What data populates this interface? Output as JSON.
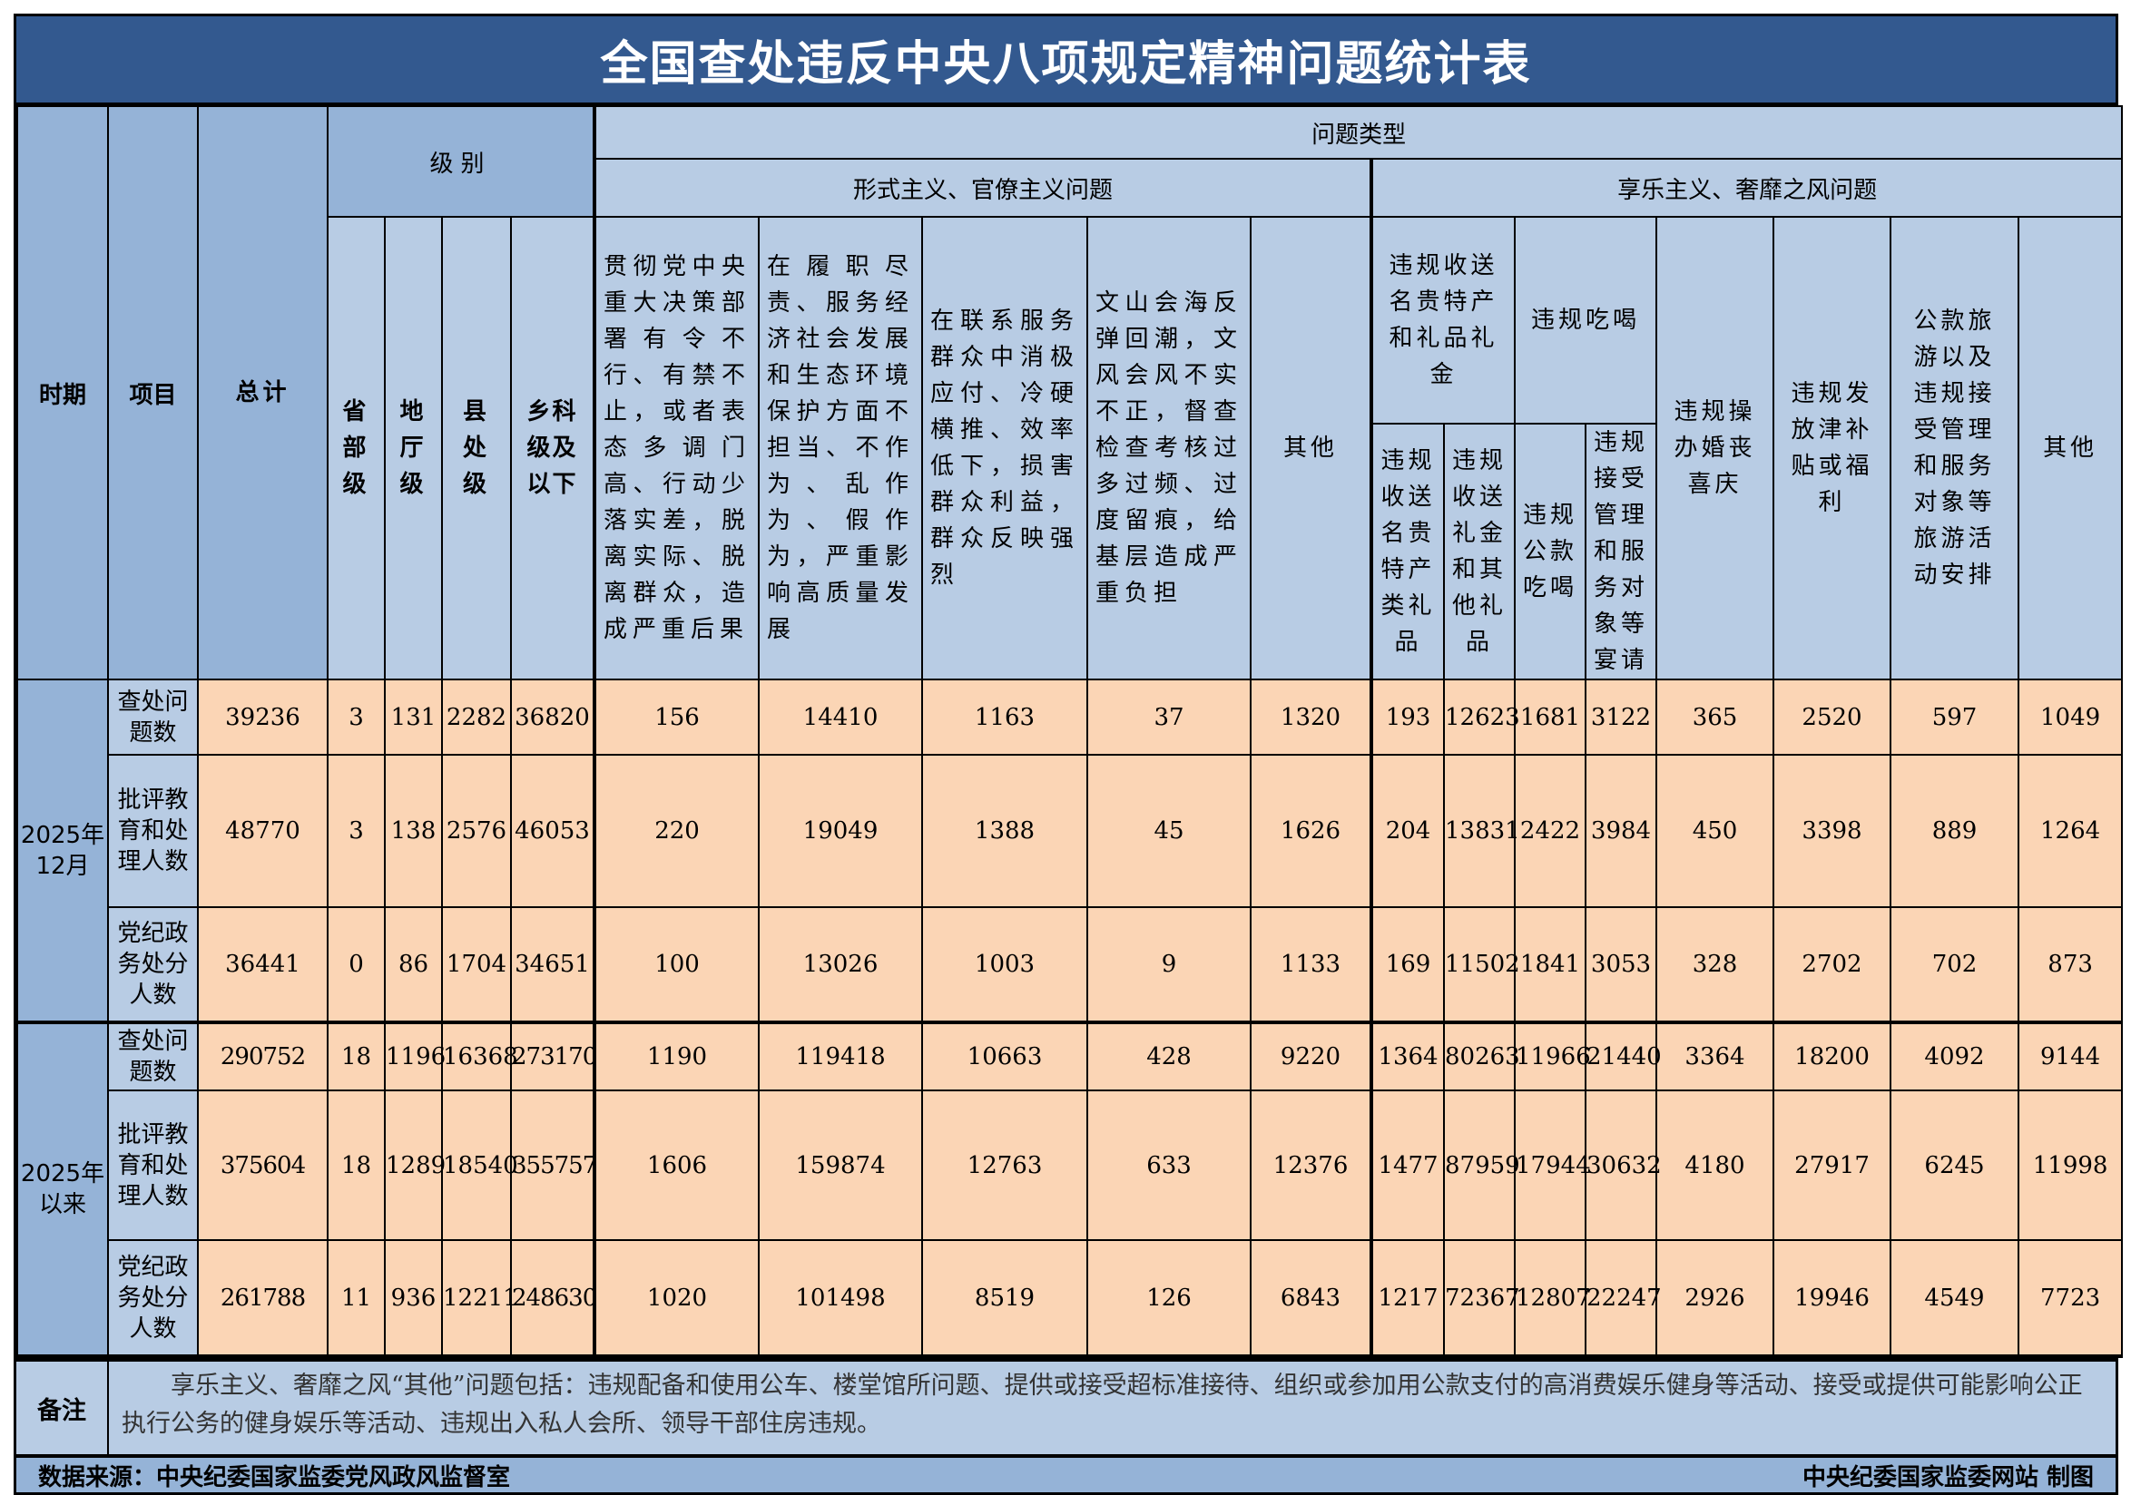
{
  "title": "全国查处违反中央八项规定精神问题统计表",
  "headers": {
    "period": "时期",
    "item": "项目",
    "total": "总计",
    "level": "级别",
    "level_cols": [
      "省部级",
      "地厅级",
      "县处级",
      "乡科级及以下"
    ],
    "problem_type": "问题类型",
    "formalism": "形式主义、官僚主义问题",
    "formalism_cols": [
      "贯彻党中央重大决策部署有令不行、有禁不止，或者表态多调门高、行动少落实差，脱离实际、脱离群众，造成严重后果",
      "在履职尽责、服务经济社会发展和生态环境保护方面不担当、不作为、乱作为、假作为，严重影响高质量发展",
      "在联系服务群众中消极应付、冷硬横推、效率低下，损害群众利益，群众反映强烈",
      "文山会海反弹回潮，文风会风不实不正，督查检查考核过多过频、过度留痕，给基层造成严重负担",
      "其他"
    ],
    "hedonism": "享乐主义、奢靡之风问题",
    "gifts": "违规收送名贵特产和礼品礼金",
    "gifts_cols": [
      "违规收送名贵特产类礼品",
      "违规收送礼金和其他礼品"
    ],
    "dining": "违规吃喝",
    "dining_cols": [
      "违规公款吃喝",
      "违规接受管理和服务对象等宴请"
    ],
    "hedonism_cols": [
      "违规操办婚丧喜庆",
      "违规发放津补贴或福利",
      "公款旅游以及违规接受管理和服务对象等旅游活动安排",
      "其他"
    ]
  },
  "rows": [
    {
      "period": "2025年12月",
      "item": "查处问题数",
      "values": [
        39236,
        3,
        131,
        2282,
        36820,
        156,
        14410,
        1163,
        37,
        1320,
        193,
        12623,
        1681,
        3122,
        365,
        2520,
        597,
        1049
      ]
    },
    {
      "period": "2025年12月",
      "item": "批评教育和处理人数",
      "values": [
        48770,
        3,
        138,
        2576,
        46053,
        220,
        19049,
        1388,
        45,
        1626,
        204,
        13831,
        2422,
        3984,
        450,
        3398,
        889,
        1264
      ]
    },
    {
      "period": "2025年12月",
      "item": "党纪政务处分人数",
      "values": [
        36441,
        0,
        86,
        1704,
        34651,
        100,
        13026,
        1003,
        9,
        1133,
        169,
        11502,
        1841,
        3053,
        328,
        2702,
        702,
        873
      ]
    },
    {
      "period": "2025年以来",
      "item": "查处问题数",
      "values": [
        290752,
        18,
        1196,
        16368,
        273170,
        1190,
        119418,
        10663,
        428,
        9220,
        1364,
        80263,
        11966,
        21440,
        3364,
        18200,
        4092,
        9144
      ]
    },
    {
      "period": "2025年以来",
      "item": "批评教育和处理人数",
      "values": [
        375604,
        18,
        1289,
        18540,
        355757,
        1606,
        159874,
        12763,
        633,
        12376,
        1477,
        87959,
        17944,
        30632,
        4180,
        27917,
        6245,
        11998
      ]
    },
    {
      "period": "2025年以来",
      "item": "党纪政务处分人数",
      "values": [
        261788,
        11,
        936,
        12211,
        248630,
        1020,
        101498,
        8519,
        126,
        6843,
        1217,
        72367,
        12807,
        22247,
        2926,
        19946,
        4549,
        7723
      ]
    }
  ],
  "periods": [
    "2025年12月",
    "2025年以来"
  ],
  "note": {
    "label": "备注",
    "text": "享乐主义、奢靡之风“其他”问题包括：违规配备和使用公车、楼堂馆所问题、提供或接受超标准接待、组织或参加用公款支付的高消费娱乐健身等活动、接受或提供可能影响公正执行公务的健身娱乐等活动、违规出入私人会所、领导干部住房违规。"
  },
  "footer": {
    "source": "数据来源：中央纪委国家监委党风政风监督室",
    "credit": "中央纪委国家监委网站 制图"
  },
  "colors": {
    "title_bg": "#33598f",
    "header_bg": "#b8cce4",
    "header_dark": "#95b3d7",
    "cell_bg": "#fbd5b5"
  }
}
